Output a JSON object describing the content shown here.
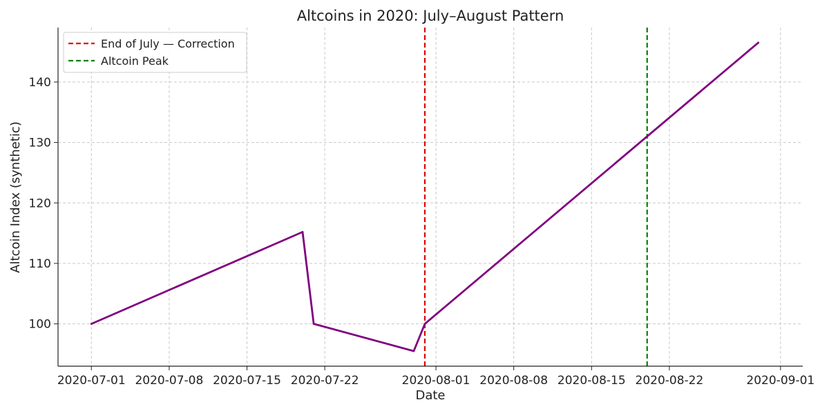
{
  "chart_data": {
    "type": "line",
    "title": "Altcoins in 2020: July–August Pattern",
    "xlabel": "Date",
    "ylabel": "Altcoin Index (synthetic)",
    "xlim": [
      "2020-06-28",
      "2020-09-03"
    ],
    "ylim": [
      93,
      149
    ],
    "x_ticks": [
      "2020-07-01",
      "2020-07-08",
      "2020-07-15",
      "2020-07-22",
      "2020-08-01",
      "2020-08-08",
      "2020-08-15",
      "2020-08-22",
      "2020-09-01"
    ],
    "y_ticks": [
      100,
      110,
      120,
      130,
      140
    ],
    "grid": true,
    "legend_position": "top-left",
    "series": [
      {
        "color": "#800080",
        "x": [
          "2020-07-01",
          "2020-07-20",
          "2020-07-21",
          "2020-07-30",
          "2020-07-31",
          "2020-08-30"
        ],
        "y": [
          100,
          115.2,
          100,
          95.5,
          100,
          146.5
        ]
      }
    ],
    "vlines": [
      {
        "x": "2020-07-31",
        "label": "End of July — Correction",
        "color": "#dd0000",
        "style": "dashed"
      },
      {
        "x": "2020-08-20",
        "label": "Altcoin Peak",
        "color": "#008000",
        "style": "dashed"
      }
    ]
  }
}
